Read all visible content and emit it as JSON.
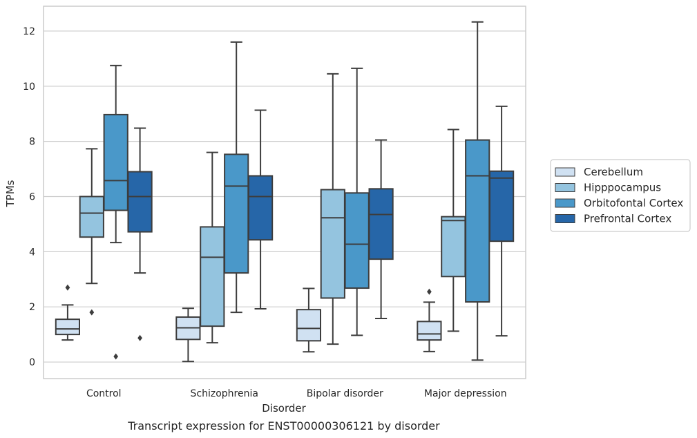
{
  "chart_data": {
    "type": "box",
    "xlabel": "Disorder",
    "ylabel": "TPMs",
    "caption": "Transcript expression for ENST00000306121 by disorder",
    "ylim": [
      -0.6,
      12.9
    ],
    "yticks": [
      0,
      2,
      4,
      6,
      8,
      10,
      12
    ],
    "grid": "horizontal",
    "legend_position": "right",
    "categories": [
      "Control",
      "Schizophrenia",
      "Bipolar disorder",
      "Major depression"
    ],
    "series": [
      {
        "name": "Cerebellum",
        "color": "#d0e1f2",
        "boxes": [
          {
            "whisker_low": 0.8,
            "q1": 1.0,
            "median": 1.2,
            "q3": 1.55,
            "whisker_high": 2.07,
            "outliers": [
              2.7
            ]
          },
          {
            "whisker_low": 0.02,
            "q1": 0.82,
            "median": 1.24,
            "q3": 1.63,
            "whisker_high": 1.95,
            "outliers": []
          },
          {
            "whisker_low": 0.37,
            "q1": 0.77,
            "median": 1.22,
            "q3": 1.9,
            "whisker_high": 2.67,
            "outliers": []
          },
          {
            "whisker_low": 0.38,
            "q1": 0.8,
            "median": 1.02,
            "q3": 1.47,
            "whisker_high": 2.17,
            "outliers": [
              2.55
            ]
          }
        ]
      },
      {
        "name": "Hipppocampus",
        "color": "#94c4df",
        "boxes": [
          {
            "whisker_low": 2.85,
            "q1": 4.53,
            "median": 5.4,
            "q3": 6.0,
            "whisker_high": 7.73,
            "outliers": [
              1.8
            ]
          },
          {
            "whisker_low": 0.7,
            "q1": 1.3,
            "median": 3.8,
            "q3": 4.9,
            "whisker_high": 7.6,
            "outliers": []
          },
          {
            "whisker_low": 0.65,
            "q1": 2.32,
            "median": 5.23,
            "q3": 6.25,
            "whisker_high": 10.45,
            "outliers": []
          },
          {
            "whisker_low": 1.12,
            "q1": 3.1,
            "median": 5.13,
            "q3": 5.27,
            "whisker_high": 8.43,
            "outliers": []
          }
        ]
      },
      {
        "name": "Orbitofontal Cortex",
        "color": "#4a98c9",
        "boxes": [
          {
            "whisker_low": 4.33,
            "q1": 5.5,
            "median": 6.58,
            "q3": 8.97,
            "whisker_high": 10.75,
            "outliers": [
              0.2
            ]
          },
          {
            "whisker_low": 1.8,
            "q1": 3.23,
            "median": 6.38,
            "q3": 7.53,
            "whisker_high": 11.6,
            "outliers": []
          },
          {
            "whisker_low": 0.97,
            "q1": 2.68,
            "median": 4.27,
            "q3": 6.13,
            "whisker_high": 10.65,
            "outliers": []
          },
          {
            "whisker_low": 0.07,
            "q1": 2.18,
            "median": 6.75,
            "q3": 8.05,
            "whisker_high": 12.33,
            "outliers": []
          }
        ]
      },
      {
        "name": "Prefrontal Cortex",
        "color": "#2666a8",
        "boxes": [
          {
            "whisker_low": 3.23,
            "q1": 4.72,
            "median": 6.0,
            "q3": 6.9,
            "whisker_high": 8.48,
            "outliers": [
              0.87
            ]
          },
          {
            "whisker_low": 1.93,
            "q1": 4.43,
            "median": 6.0,
            "q3": 6.75,
            "whisker_high": 9.13,
            "outliers": []
          },
          {
            "whisker_low": 1.58,
            "q1": 3.73,
            "median": 5.35,
            "q3": 6.28,
            "whisker_high": 8.05,
            "outliers": []
          },
          {
            "whisker_low": 0.95,
            "q1": 4.38,
            "median": 6.67,
            "q3": 6.92,
            "whisker_high": 9.27,
            "outliers": []
          }
        ]
      }
    ]
  }
}
